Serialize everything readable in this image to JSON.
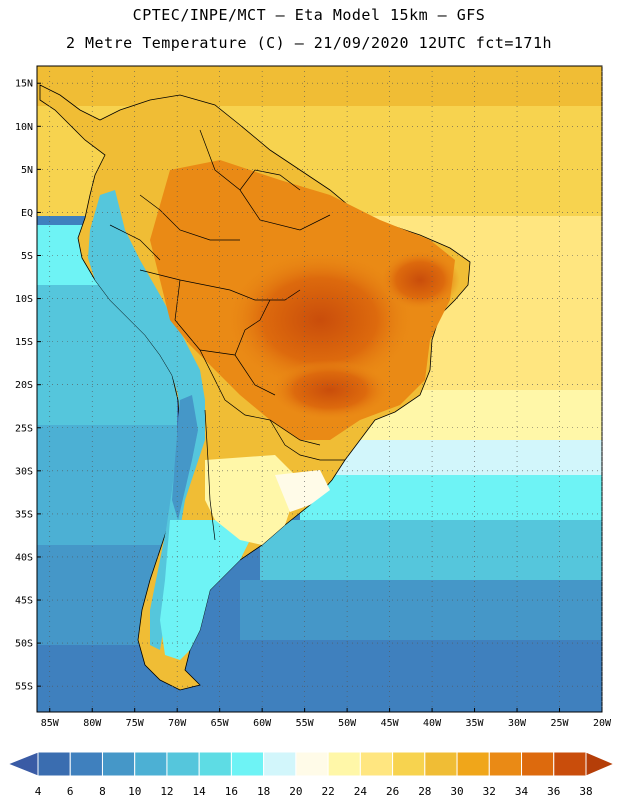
{
  "header": {
    "line1": "CPTEC/INPE/MCT –  Eta Model 15km – GFS",
    "line2": "2 Metre Temperature (C) – 21/09/2020 12UTC fct=171h"
  },
  "map": {
    "lat_labels": [
      "15N",
      "10N",
      "5N",
      "EQ",
      "5S",
      "10S",
      "15S",
      "20S",
      "25S",
      "30S",
      "35S",
      "40S",
      "45S",
      "50S",
      "55S"
    ],
    "lon_labels": [
      "85W",
      "80W",
      "75W",
      "70W",
      "65W",
      "60W",
      "55W",
      "50W",
      "45W",
      "40W",
      "35W",
      "30W",
      "25W",
      "20W"
    ],
    "lat_values": [
      15,
      10,
      5,
      0,
      -5,
      -10,
      -15,
      -20,
      -25,
      -30,
      -35,
      -40,
      -45,
      -50,
      -55
    ],
    "lon_values": [
      -85,
      -80,
      -75,
      -70,
      -65,
      -60,
      -55,
      -50,
      -45,
      -40,
      -35,
      -30,
      -25,
      -20
    ],
    "lat_range": [
      -58,
      17
    ],
    "lon_range": [
      -86.5,
      -20
    ],
    "field": "2 Metre Temperature",
    "units": "C"
  },
  "colorbar": {
    "labels": [
      "4",
      "6",
      "8",
      "10",
      "12",
      "14",
      "16",
      "18",
      "20",
      "22",
      "24",
      "26",
      "28",
      "30",
      "32",
      "34",
      "36",
      "38"
    ],
    "colors": [
      "#3a6db0",
      "#3f80be",
      "#4597c8",
      "#4cb0d4",
      "#55c6dc",
      "#5edce4",
      "#6ef3f5",
      "#d2f6fb",
      "#fffbe8",
      "#fff7a8",
      "#ffe680",
      "#f7d34f",
      "#f0bd35",
      "#f0a61a",
      "#ea8a15",
      "#dd6a0d",
      "#c94d0b"
    ],
    "left_arrow_color": "#3a5ba5",
    "right_arrow_color": "#b53e08"
  }
}
